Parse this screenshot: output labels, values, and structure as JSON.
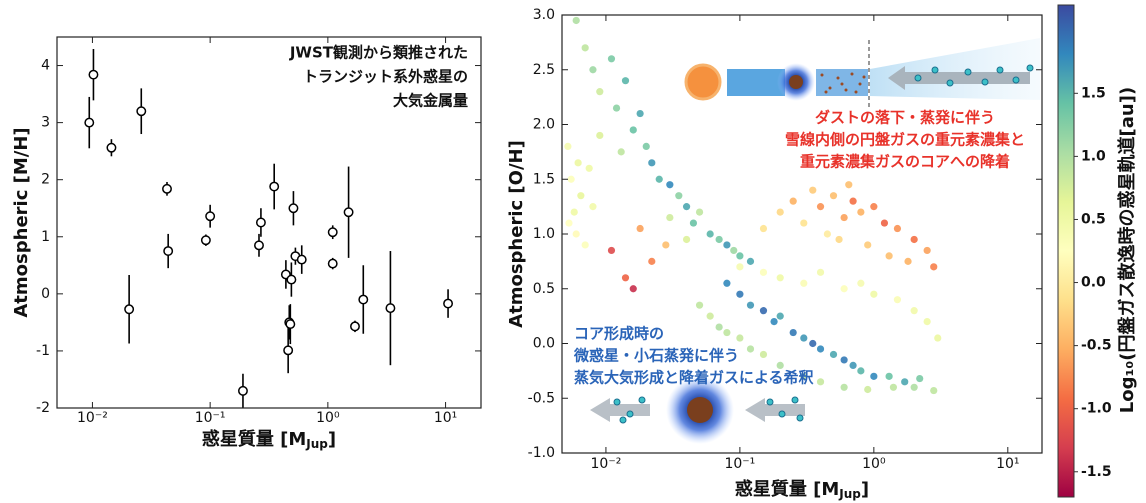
{
  "chart_data": [
    {
      "type": "errorbar",
      "log_x": true,
      "color": "#000000",
      "xlabel": "惑星質量 [M",
      "xlabel_sub": "Jup",
      "xlabel_end": "]",
      "ylabel": "Atmospheric [M/H]",
      "annotation": [
        "JWST観測から類推された",
        "トランジット系外惑星の",
        "大気金属量"
      ],
      "xlim": [
        0.005,
        20
      ],
      "ylim": [
        -2,
        4.5
      ],
      "xticks": [
        {
          "value": 0.01,
          "label": "10⁻²"
        },
        {
          "value": 0.1,
          "label": "10⁻¹"
        },
        {
          "value": 1,
          "label": "10⁰"
        },
        {
          "value": 10,
          "label": "10¹"
        }
      ],
      "yticks": [
        -2,
        -1,
        0,
        1,
        2,
        3,
        4
      ],
      "x": [
        0.0094,
        0.0102,
        0.0145,
        0.0205,
        0.026,
        0.043,
        0.044,
        0.092,
        0.1,
        0.19,
        0.26,
        0.27,
        0.35,
        0.44,
        0.46,
        0.47,
        0.48,
        0.49,
        0.51,
        0.53,
        0.6,
        1.1,
        1.1,
        1.5,
        1.7,
        2.0,
        3.4,
        10.5
      ],
      "values": [
        3.0,
        3.84,
        2.56,
        -0.27,
        3.2,
        1.84,
        0.75,
        0.94,
        1.36,
        -1.7,
        0.85,
        1.25,
        1.88,
        0.34,
        -0.99,
        -0.5,
        -0.53,
        0.25,
        1.5,
        0.66,
        0.6,
        1.08,
        0.53,
        1.43,
        -0.57,
        -0.1,
        -0.25,
        -0.17
      ],
      "errors": [
        0.45,
        0.45,
        0.15,
        0.6,
        0.4,
        0.12,
        0.3,
        0.1,
        0.2,
        0.3,
        0.2,
        0.25,
        0.4,
        0.25,
        0.4,
        0.3,
        0.35,
        0.3,
        0.3,
        0.15,
        0.25,
        0.12,
        0.1,
        0.8,
        0.1,
        0.6,
        1.0,
        0.25
      ]
    },
    {
      "type": "scatter",
      "log_x": true,
      "colormap": "Spectral_r",
      "xlabel": "惑星質量 [M",
      "xlabel_sub": "Jup",
      "xlabel_end": "]",
      "ylabel": "Atmospheric [O/H]",
      "colorbar_label": "Log₁₀(円盤ガス散逸時の惑星軌道[au])",
      "annotations": [
        {
          "lines": [
            "ダストの落下・蒸発に伴う",
            "雪線内側の円盤ガスの重元素濃集と",
            "重元素濃集ガスのコアへの降着"
          ],
          "color": "#e8322a"
        },
        {
          "lines": [
            "コア形成時の",
            "微惑星・小石蒸発に伴う",
            "蒸気大気形成と降着ガスによる希釈"
          ],
          "color": "#2a64b8"
        }
      ],
      "xlim": [
        0.0047,
        18
      ],
      "ylim": [
        -1,
        3
      ],
      "clim": [
        -1.7,
        2.2
      ],
      "xticks": [
        {
          "value": 0.01,
          "label": "10⁻²"
        },
        {
          "value": 0.1,
          "label": "10⁻¹"
        },
        {
          "value": 1,
          "label": "10⁰"
        },
        {
          "value": 10,
          "label": "10¹"
        }
      ],
      "yticks": [
        {
          "value": -1,
          "label": "-1.0"
        },
        -0.5,
        {
          "value": 0,
          "label": "0.0"
        },
        0.5,
        {
          "value": 1,
          "label": "1.0"
        },
        1.5,
        {
          "value": 2,
          "label": "2.0"
        },
        2.5,
        {
          "value": 3,
          "label": "3.0"
        }
      ],
      "cticks": [
        1.5,
        {
          "value": 1,
          "label": "1.0"
        },
        0.5,
        {
          "value": 0,
          "label": "0.0"
        },
        -0.5,
        {
          "value": -1,
          "label": "-1.0"
        },
        -1.5
      ],
      "x": [
        0.006,
        0.007,
        0.008,
        0.009,
        0.011,
        0.012,
        0.014,
        0.016,
        0.018,
        0.02,
        0.022,
        0.009,
        0.013,
        0.025,
        0.03,
        0.0052,
        0.0055,
        0.0058,
        0.006,
        0.0065,
        0.007,
        0.0075,
        0.0053,
        0.008,
        0.0062,
        0.035,
        0.04,
        0.045,
        0.05,
        0.06,
        0.07,
        0.08,
        0.09,
        0.1,
        0.12,
        0.03,
        0.04,
        0.011,
        0.014,
        0.018,
        0.022,
        0.028,
        0.016,
        0.2,
        0.25,
        0.3,
        0.35,
        0.4,
        0.5,
        0.6,
        0.7,
        0.8,
        1.0,
        1.2,
        1.5,
        2.0,
        2.5,
        0.45,
        0.55,
        0.9,
        1.3,
        1.8,
        2.8,
        0.15,
        0.65,
        0.08,
        0.1,
        0.12,
        0.15,
        0.18,
        0.2,
        0.25,
        0.3,
        0.35,
        0.4,
        0.5,
        0.6,
        0.7,
        0.8,
        1.0,
        1.3,
        1.7,
        2.2,
        0.05,
        0.06,
        0.07,
        0.08,
        0.1,
        0.12,
        0.15,
        0.2,
        0.3,
        0.4,
        0.6,
        0.9,
        1.4,
        2.0,
        2.8,
        0.1,
        0.15,
        0.2,
        0.3,
        0.4,
        0.6,
        0.8,
        1.0,
        1.5,
        2.0,
        2.5,
        3.0
      ],
      "values": [
        2.95,
        2.7,
        2.5,
        2.3,
        2.6,
        2.15,
        2.4,
        1.95,
        2.1,
        1.8,
        1.65,
        1.9,
        1.75,
        1.5,
        1.45,
        1.8,
        1.5,
        1.2,
        1.0,
        1.35,
        0.9,
        1.6,
        1.1,
        1.25,
        1.65,
        1.35,
        1.25,
        1.1,
        1.2,
        1.0,
        0.95,
        0.9,
        0.85,
        0.8,
        0.75,
        1.15,
        0.95,
        0.85,
        0.6,
        1.05,
        0.75,
        0.9,
        0.5,
        1.2,
        1.3,
        1.1,
        1.4,
        1.25,
        1.35,
        1.15,
        1.3,
        1.2,
        1.25,
        1.1,
        1.05,
        0.95,
        0.85,
        1.0,
        0.95,
        0.9,
        0.8,
        0.75,
        0.7,
        1.05,
        1.45,
        0.55,
        0.45,
        0.35,
        0.3,
        0.2,
        0.25,
        0.1,
        0.05,
        0.0,
        -0.05,
        -0.1,
        -0.15,
        -0.2,
        -0.25,
        -0.3,
        -0.3,
        -0.35,
        -0.32,
        0.35,
        0.25,
        0.15,
        0.1,
        0.05,
        -0.05,
        -0.1,
        -0.2,
        -0.3,
        -0.35,
        -0.4,
        -0.42,
        -0.4,
        -0.4,
        -0.43,
        0.7,
        0.65,
        0.6,
        0.55,
        0.65,
        0.5,
        0.55,
        0.45,
        0.4,
        0.3,
        0.2,
        0.05
      ],
      "c": [
        1.0,
        0.9,
        1.1,
        0.8,
        1.3,
        1.2,
        1.5,
        1.4,
        1.6,
        1.3,
        1.7,
        0.7,
        0.9,
        1.5,
        1.8,
        0.4,
        0.3,
        0.5,
        0.2,
        0.6,
        0.3,
        0.5,
        0.25,
        0.45,
        0.55,
        1.2,
        1.6,
        1.4,
        0.9,
        1.5,
        1.3,
        1.7,
        1.1,
        1.4,
        1.6,
        0.8,
        0.7,
        -1.2,
        -1.0,
        -0.6,
        -0.8,
        -0.4,
        -1.4,
        -0.2,
        -0.5,
        -0.1,
        -0.3,
        -0.7,
        -0.4,
        -0.6,
        -0.9,
        -0.5,
        -0.8,
        -1.0,
        -0.7,
        -0.9,
        -0.6,
        0.0,
        -0.2,
        -0.3,
        -0.4,
        -0.5,
        -0.8,
        -0.1,
        -0.4,
        1.8,
        1.9,
        1.7,
        2.0,
        1.8,
        1.6,
        1.9,
        1.7,
        2.0,
        1.8,
        1.6,
        1.9,
        1.7,
        1.5,
        1.8,
        1.4,
        1.6,
        1.3,
        0.9,
        0.8,
        1.0,
        0.9,
        0.85,
        0.95,
        0.8,
        1.0,
        0.9,
        0.85,
        0.95,
        0.8,
        0.9,
        1.0,
        0.9,
        0.4,
        0.3,
        0.5,
        0.35,
        0.45,
        0.3,
        0.4,
        0.5,
        0.35,
        0.45,
        0.5,
        0.55
      ]
    }
  ]
}
